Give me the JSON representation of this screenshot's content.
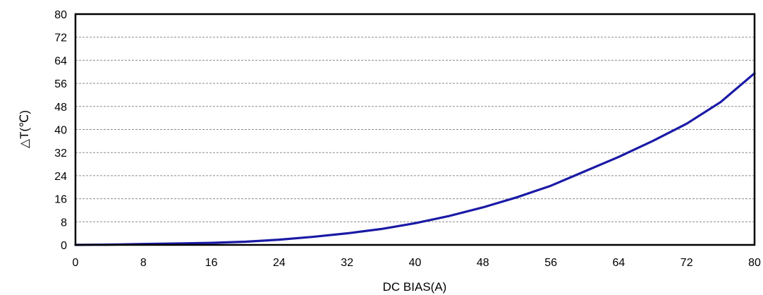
{
  "chart_data": {
    "type": "line",
    "title": "",
    "xlabel": "DC BIAS(A)",
    "ylabel": "△T(℃)",
    "xlim": [
      0,
      80
    ],
    "ylim": [
      0,
      80
    ],
    "x_ticks": [
      "0",
      "8",
      "16",
      "24",
      "32",
      "40",
      "48",
      "56",
      "64",
      "72",
      "80"
    ],
    "y_ticks": [
      "0",
      "8",
      "16",
      "24",
      "32",
      "40",
      "48",
      "56",
      "64",
      "72",
      "80"
    ],
    "grid": "horizontal dashed",
    "line_color": "#1a1aa6",
    "series": [
      {
        "x": [
          0,
          4,
          8,
          12,
          16,
          20,
          24,
          28,
          32,
          36,
          40,
          44,
          48,
          52,
          56,
          60,
          64,
          68,
          72,
          76,
          80
        ],
        "values": [
          0,
          0.1,
          0.3,
          0.5,
          0.7,
          1.1,
          1.8,
          2.8,
          4.0,
          5.5,
          7.5,
          10.0,
          13.0,
          16.5,
          20.5,
          25.5,
          30.5,
          36.0,
          42.0,
          49.5,
          59.5
        ]
      }
    ]
  }
}
